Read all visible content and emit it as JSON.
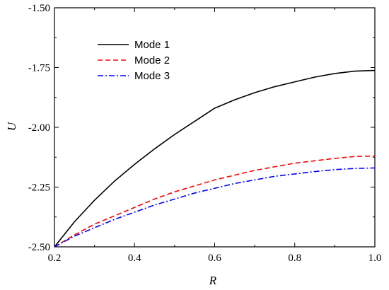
{
  "chart_data": {
    "type": "line",
    "title": "",
    "xlabel": "R",
    "ylabel": "U",
    "xlim": [
      0.2,
      1.0
    ],
    "ylim": [
      -2.5,
      -1.5
    ],
    "x_ticks": [
      0.2,
      0.4,
      0.6,
      0.8,
      1.0
    ],
    "x_tick_labels": [
      "0.2",
      "0.4",
      "0.6",
      "0.8",
      "1.0"
    ],
    "y_ticks": [
      -2.5,
      -2.25,
      -2.0,
      -1.75,
      -1.5
    ],
    "y_tick_labels": [
      "-2.50",
      "-2.25",
      "-2.00",
      "-1.75",
      "-1.50"
    ],
    "grid": false,
    "legend_position": "top-left",
    "series": [
      {
        "name": "Mode 1",
        "color": "#000000",
        "style": "solid",
        "x": [
          0.2,
          0.25,
          0.3,
          0.35,
          0.4,
          0.45,
          0.5,
          0.55,
          0.6,
          0.65,
          0.7,
          0.75,
          0.8,
          0.85,
          0.9,
          0.95,
          1.0
        ],
        "y": [
          -2.5,
          -2.395,
          -2.305,
          -2.225,
          -2.155,
          -2.09,
          -2.03,
          -1.975,
          -1.92,
          -1.885,
          -1.855,
          -1.83,
          -1.81,
          -1.79,
          -1.775,
          -1.765,
          -1.762
        ]
      },
      {
        "name": "Mode 2",
        "color": "#ff0000",
        "style": "dashed",
        "x": [
          0.2,
          0.25,
          0.3,
          0.35,
          0.4,
          0.45,
          0.5,
          0.55,
          0.6,
          0.65,
          0.7,
          0.75,
          0.8,
          0.85,
          0.9,
          0.95,
          1.0
        ],
        "y": [
          -2.5,
          -2.45,
          -2.405,
          -2.37,
          -2.335,
          -2.3,
          -2.27,
          -2.245,
          -2.22,
          -2.2,
          -2.18,
          -2.165,
          -2.15,
          -2.14,
          -2.13,
          -2.122,
          -2.12
        ]
      },
      {
        "name": "Mode 3",
        "color": "#0000ff",
        "style": "dashdot",
        "x": [
          0.2,
          0.25,
          0.3,
          0.35,
          0.4,
          0.45,
          0.5,
          0.55,
          0.6,
          0.65,
          0.7,
          0.75,
          0.8,
          0.85,
          0.9,
          0.95,
          1.0
        ],
        "y": [
          -2.5,
          -2.455,
          -2.42,
          -2.385,
          -2.355,
          -2.325,
          -2.3,
          -2.275,
          -2.255,
          -2.235,
          -2.22,
          -2.205,
          -2.195,
          -2.185,
          -2.177,
          -2.172,
          -2.17
        ]
      }
    ]
  }
}
